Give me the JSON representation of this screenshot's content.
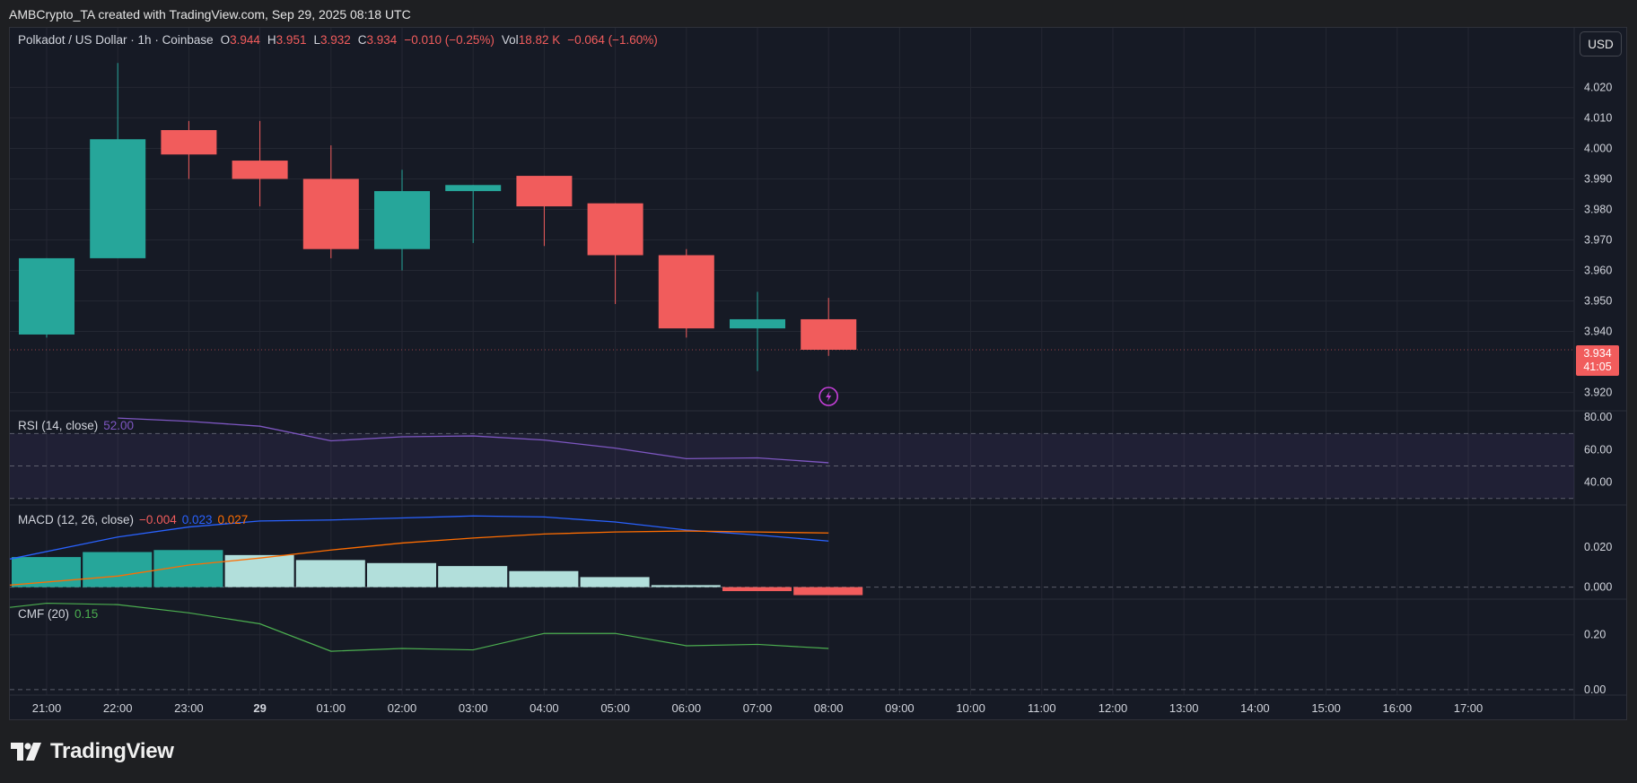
{
  "header": {
    "attribution": "AMBCrypto_TA created with TradingView.com, Sep 29, 2025 08:18 UTC"
  },
  "legend": {
    "symbol": "Polkadot / US Dollar · 1h · Coinbase",
    "o_label": "O",
    "o_value": "3.944",
    "h_label": "H",
    "h_value": "3.951",
    "l_label": "L",
    "l_value": "3.932",
    "c_label": "C",
    "c_value": "3.934",
    "change": "−0.010 (−0.25%)",
    "vol_label": "Vol",
    "vol_value": "18.82 K",
    "vol_change": "−0.064 (−1.60%)"
  },
  "currency_button": "USD",
  "last_price": {
    "price": "3.934",
    "countdown": "41:05"
  },
  "indicators": {
    "rsi": {
      "label": "RSI (14, close)",
      "value": "52.00",
      "color": "#7e57c2"
    },
    "macd": {
      "label": "MACD (12, 26, close)",
      "hist": "−0.004",
      "macd": "0.023",
      "signal": "0.027",
      "hist_color": "#f15c5c",
      "macd_color": "#2962ff",
      "signal_color": "#ff6d00"
    },
    "cmf": {
      "label": "CMF (20)",
      "value": "0.15",
      "color": "#4caf50"
    }
  },
  "logo_text": "TradingView",
  "colors": {
    "up": "#26a69a",
    "down": "#f15c5c",
    "background": "#161a25",
    "grid": "#242732"
  },
  "chart_data": [
    {
      "type": "candlestick",
      "title": "Polkadot / US Dollar · 1h · Coinbase",
      "x_tick_labels": [
        "21:00",
        "22:00",
        "23:00",
        "29",
        "01:00",
        "02:00",
        "03:00",
        "04:00",
        "05:00",
        "06:00",
        "07:00",
        "08:00",
        "09:00",
        "10:00",
        "11:00",
        "12:00",
        "13:00",
        "14:00",
        "15:00",
        "16:00",
        "17:00"
      ],
      "y_tick_labels": [
        "3.920",
        "3.940",
        "3.950",
        "3.960",
        "3.970",
        "3.980",
        "3.990",
        "4.000",
        "4.010",
        "4.020"
      ],
      "ylim": [
        3.914,
        4.031
      ],
      "candles": [
        {
          "time": "21:00",
          "open": 3.939,
          "high": 3.964,
          "low": 3.938,
          "close": 3.964
        },
        {
          "time": "22:00",
          "open": 3.964,
          "high": 4.028,
          "low": 3.964,
          "close": 4.003
        },
        {
          "time": "23:00",
          "open": 4.006,
          "high": 4.009,
          "low": 3.99,
          "close": 3.998
        },
        {
          "time": "00:00",
          "open": 3.996,
          "high": 4.009,
          "low": 3.981,
          "close": 3.99
        },
        {
          "time": "01:00",
          "open": 3.99,
          "high": 4.001,
          "low": 3.964,
          "close": 3.967
        },
        {
          "time": "02:00",
          "open": 3.967,
          "high": 3.993,
          "low": 3.96,
          "close": 3.986
        },
        {
          "time": "03:00",
          "open": 3.986,
          "high": 3.988,
          "low": 3.969,
          "close": 3.988
        },
        {
          "time": "04:00",
          "open": 3.991,
          "high": 3.991,
          "low": 3.968,
          "close": 3.981
        },
        {
          "time": "05:00",
          "open": 3.982,
          "high": 3.982,
          "low": 3.949,
          "close": 3.965
        },
        {
          "time": "06:00",
          "open": 3.965,
          "high": 3.967,
          "low": 3.938,
          "close": 3.941
        },
        {
          "time": "07:00",
          "open": 3.941,
          "high": 3.953,
          "low": 3.927,
          "close": 3.944
        },
        {
          "time": "08:00",
          "open": 3.944,
          "high": 3.951,
          "low": 3.932,
          "close": 3.934
        }
      ]
    },
    {
      "type": "line",
      "title": "RSI (14, close)",
      "y_tick_labels": [
        "40.00",
        "60.00",
        "80.00"
      ],
      "ylim": [
        26,
        84
      ],
      "band": [
        30,
        70
      ],
      "x": [
        "22:00",
        "23:00",
        "00:00",
        "01:00",
        "02:00",
        "03:00",
        "04:00",
        "05:00",
        "06:00",
        "07:00",
        "08:00"
      ],
      "values": [
        79.5,
        77.5,
        74.5,
        65.5,
        68,
        68.5,
        66,
        61,
        54.5,
        55,
        52
      ]
    },
    {
      "type": "bar",
      "title": "MACD (12, 26, close)",
      "y_tick_labels": [
        "0.000",
        "0.020"
      ],
      "ylim": [
        -0.006,
        0.041
      ],
      "categories": [
        "21:00",
        "22:00",
        "23:00",
        "00:00",
        "01:00",
        "02:00",
        "03:00",
        "04:00",
        "05:00",
        "06:00",
        "07:00",
        "08:00"
      ],
      "histogram": [
        0.015,
        0.0175,
        0.0185,
        0.016,
        0.0135,
        0.012,
        0.0105,
        0.008,
        0.005,
        0.001,
        -0.002,
        -0.004
      ],
      "series": [
        {
          "name": "MACD",
          "x": [
            "21:00",
            "22:00",
            "23:00",
            "00:00",
            "01:00",
            "02:00",
            "03:00",
            "04:00",
            "05:00",
            "06:00",
            "07:00",
            "08:00"
          ],
          "values": [
            0.014,
            0.025,
            0.03,
            0.033,
            0.0335,
            0.0345,
            0.0355,
            0.035,
            0.0325,
            0.0285,
            0.026,
            0.023
          ]
        },
        {
          "name": "Signal",
          "x": [
            "21:00",
            "22:00",
            "23:00",
            "00:00",
            "01:00",
            "02:00",
            "03:00",
            "04:00",
            "05:00",
            "06:00",
            "07:00",
            "08:00"
          ],
          "values": [
            0.001,
            0.0055,
            0.011,
            0.0145,
            0.0185,
            0.022,
            0.0245,
            0.0265,
            0.0275,
            0.028,
            0.0275,
            0.027
          ]
        }
      ]
    },
    {
      "type": "line",
      "title": "CMF (20)",
      "y_tick_labels": [
        "0.00",
        "0.20"
      ],
      "ylim": [
        -0.02,
        0.33
      ],
      "x": [
        "20:45",
        "21:00",
        "22:00",
        "23:00",
        "00:00",
        "01:00",
        "02:00",
        "03:00",
        "04:00",
        "05:00",
        "06:00",
        "07:00",
        "08:00"
      ],
      "values": [
        0.3,
        0.315,
        0.31,
        0.28,
        0.24,
        0.14,
        0.15,
        0.145,
        0.205,
        0.205,
        0.16,
        0.165,
        0.15
      ]
    }
  ]
}
